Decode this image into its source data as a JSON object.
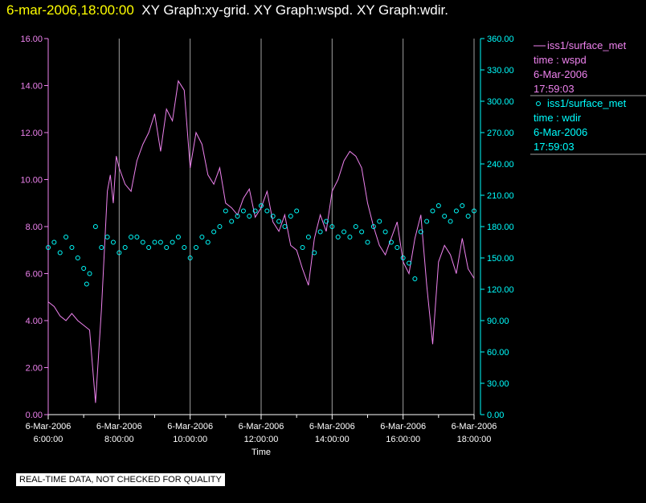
{
  "header": {
    "timestamp": "6-mar-2006,18:00:00",
    "graphs": "XY Graph:xy-grid.  XY Graph:wspd.  XY Graph:wdir."
  },
  "disclaimer": "REAL-TIME DATA, NOT CHECKED FOR QUALITY",
  "colors": {
    "wspd": "#ee82ee",
    "wdir": "#00ffff",
    "axis_left": "#ee82ee",
    "axis_right": "#00ffff",
    "grid": "#a0a0a0",
    "header_time": "#ffff00"
  },
  "legend": [
    {
      "source": "iss1/surface_met",
      "variable": "time : wspd",
      "date": "6-Mar-2006",
      "time": "17:59:03",
      "marker": "line"
    },
    {
      "source": "iss1/surface_met",
      "variable": "time : wdir",
      "date": "6-Mar-2006",
      "time": "17:59:03",
      "marker": "circle"
    }
  ],
  "chart_data": {
    "type": "line",
    "xlabel": "Time",
    "x_range": [
      "06:00",
      "18:00"
    ],
    "x_ticks": [
      {
        "date": "6-Mar-2006",
        "time": "6:00:00",
        "hour": 6
      },
      {
        "date": "6-Mar-2006",
        "time": "8:00:00",
        "hour": 8
      },
      {
        "date": "6-Mar-2006",
        "time": "10:00:00",
        "hour": 10
      },
      {
        "date": "6-Mar-2006",
        "time": "12:00:00",
        "hour": 12
      },
      {
        "date": "6-Mar-2006",
        "time": "14:00:00",
        "hour": 14
      },
      {
        "date": "6-Mar-2006",
        "time": "16:00:00",
        "hour": 16
      },
      {
        "date": "6-Mar-2006",
        "time": "18:00:00",
        "hour": 18
      }
    ],
    "y_left": {
      "range": [
        0,
        16
      ],
      "ticks": [
        "0.00",
        "2.00",
        "4.00",
        "6.00",
        "8.00",
        "10.00",
        "12.00",
        "14.00",
        "16.00"
      ]
    },
    "y_right": {
      "range": [
        0,
        360
      ],
      "ticks": [
        "0.00",
        "30.00",
        "60.00",
        "90.00",
        "120.00",
        "150.00",
        "180.00",
        "210.00",
        "240.00",
        "270.00",
        "300.00",
        "330.00",
        "360.00"
      ]
    },
    "grid": "vertical",
    "series": [
      {
        "name": "iss1/surface_met time : wspd",
        "axis": "left",
        "style": "line",
        "x": [
          "06:00",
          "06:10",
          "06:20",
          "06:30",
          "06:40",
          "06:50",
          "07:00",
          "07:10",
          "07:20",
          "07:30",
          "07:40",
          "07:45",
          "07:50",
          "07:55",
          "08:00",
          "08:10",
          "08:20",
          "08:30",
          "08:40",
          "08:50",
          "09:00",
          "09:10",
          "09:20",
          "09:30",
          "09:40",
          "09:50",
          "10:00",
          "10:10",
          "10:20",
          "10:30",
          "10:40",
          "10:50",
          "11:00",
          "11:10",
          "11:20",
          "11:30",
          "11:40",
          "11:50",
          "12:00",
          "12:10",
          "12:20",
          "12:30",
          "12:40",
          "12:50",
          "13:00",
          "13:10",
          "13:20",
          "13:30",
          "13:40",
          "13:50",
          "14:00",
          "14:10",
          "14:20",
          "14:30",
          "14:40",
          "14:50",
          "15:00",
          "15:10",
          "15:20",
          "15:30",
          "15:40",
          "15:50",
          "16:00",
          "16:10",
          "16:20",
          "16:30",
          "16:40",
          "16:50",
          "17:00",
          "17:10",
          "17:20",
          "17:30",
          "17:40",
          "17:50",
          "18:00"
        ],
        "y": [
          4.8,
          4.6,
          4.2,
          4.0,
          4.3,
          4.0,
          3.8,
          3.6,
          0.5,
          4.5,
          9.5,
          10.2,
          9.0,
          11.0,
          10.5,
          9.8,
          9.5,
          10.8,
          11.5,
          12.0,
          12.8,
          11.2,
          13.0,
          12.5,
          14.2,
          13.8,
          10.5,
          12.0,
          11.5,
          10.2,
          9.8,
          10.5,
          9.0,
          8.8,
          8.5,
          9.2,
          9.6,
          8.4,
          8.8,
          9.5,
          8.2,
          7.8,
          8.5,
          7.2,
          7.0,
          6.2,
          5.5,
          7.5,
          8.5,
          7.8,
          9.5,
          10.0,
          10.8,
          11.2,
          11.0,
          10.5,
          9.0,
          8.0,
          7.2,
          6.8,
          7.5,
          8.2,
          6.5,
          6.0,
          7.5,
          8.5,
          5.5,
          3.0,
          6.5,
          7.2,
          6.8,
          6.0,
          7.5,
          6.2,
          5.8
        ]
      },
      {
        "name": "iss1/surface_met time : wdir",
        "axis": "right",
        "style": "markers",
        "x": [
          "06:00",
          "06:10",
          "06:20",
          "06:30",
          "06:40",
          "06:50",
          "07:00",
          "07:05",
          "07:10",
          "07:20",
          "07:30",
          "07:40",
          "07:50",
          "08:00",
          "08:10",
          "08:20",
          "08:30",
          "08:40",
          "08:50",
          "09:00",
          "09:10",
          "09:20",
          "09:30",
          "09:40",
          "09:50",
          "10:00",
          "10:10",
          "10:20",
          "10:30",
          "10:40",
          "10:50",
          "11:00",
          "11:10",
          "11:20",
          "11:30",
          "11:40",
          "11:50",
          "12:00",
          "12:10",
          "12:20",
          "12:30",
          "12:40",
          "12:50",
          "13:00",
          "13:10",
          "13:20",
          "13:30",
          "13:40",
          "13:50",
          "14:00",
          "14:10",
          "14:20",
          "14:30",
          "14:40",
          "14:50",
          "15:00",
          "15:10",
          "15:20",
          "15:30",
          "15:40",
          "15:50",
          "16:00",
          "16:10",
          "16:20",
          "16:30",
          "16:40",
          "16:50",
          "17:00",
          "17:10",
          "17:20",
          "17:30",
          "17:40",
          "17:50",
          "18:00"
        ],
        "y": [
          160,
          165,
          155,
          170,
          160,
          150,
          140,
          125,
          135,
          180,
          160,
          170,
          165,
          155,
          160,
          170,
          170,
          165,
          160,
          165,
          165,
          160,
          165,
          170,
          160,
          150,
          160,
          170,
          165,
          175,
          180,
          195,
          185,
          190,
          195,
          190,
          195,
          200,
          195,
          190,
          185,
          180,
          190,
          195,
          160,
          170,
          155,
          175,
          185,
          180,
          170,
          175,
          170,
          180,
          175,
          165,
          180,
          185,
          175,
          165,
          160,
          150,
          145,
          130,
          175,
          185,
          195,
          200,
          190,
          185,
          195,
          200,
          190,
          195
        ]
      }
    ]
  }
}
